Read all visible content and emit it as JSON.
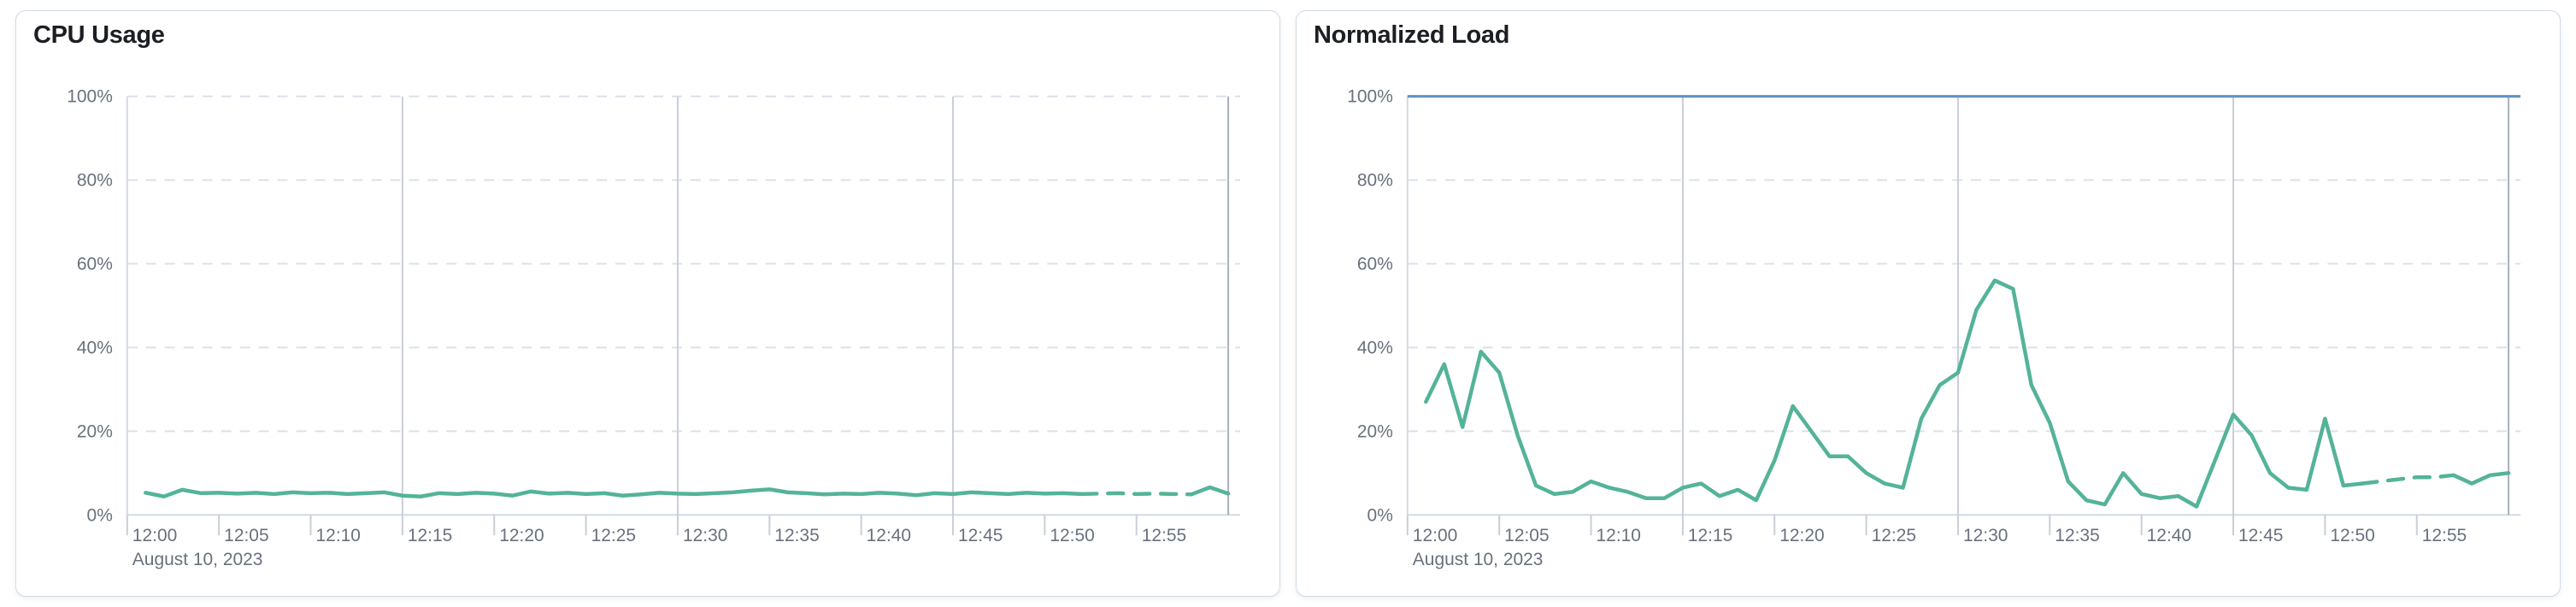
{
  "style": {
    "background": "#FFFFFF",
    "card_border": "#D3DAE6",
    "title_color": "#1C1E24",
    "axis_label_color": "#69707D",
    "h_gridline_color": "#DCE0EA",
    "v_gridline_color": "#C9CED8",
    "domain_end_line_color": "#A9AFBB",
    "axis_line_color": "#D3DAE6",
    "tick_color": "#C9CED8",
    "series_green": "#54B399",
    "limit_blue": "#6092C0"
  },
  "chart_data": [
    {
      "type": "line",
      "title": "CPU Usage",
      "date_label": "August 10, 2023",
      "x_domain": {
        "start": "12:00",
        "end": "13:00",
        "point_interval_minutes": 1,
        "first_point_minute": 1
      },
      "x_tick_labels": [
        "12:00",
        "12:05",
        "12:10",
        "12:15",
        "12:20",
        "12:25",
        "12:30",
        "12:35",
        "12:40",
        "12:45",
        "12:50",
        "12:55"
      ],
      "y_tick_labels": [
        "0%",
        "20%",
        "40%",
        "60%",
        "80%",
        "100%"
      ],
      "ylim": [
        0,
        100
      ],
      "grid": {
        "horizontal": "dashed",
        "vertical_major_every_minutes": 15,
        "legend": "none"
      },
      "limit_line": null,
      "dashed_segment": {
        "from_minute": 52,
        "to_minute": 58,
        "note": "most recent data drawn dashed"
      },
      "series": [
        {
          "name": "CPU Usage",
          "color": "#54B399",
          "unit": "%",
          "values": [
            5.3,
            4.4,
            6.0,
            5.2,
            5.3,
            5.1,
            5.3,
            5.0,
            5.4,
            5.2,
            5.3,
            5.0,
            5.2,
            5.4,
            4.6,
            4.4,
            5.2,
            5.0,
            5.3,
            5.1,
            4.6,
            5.6,
            5.1,
            5.3,
            5.0,
            5.2,
            4.6,
            4.9,
            5.3,
            5.1,
            5.0,
            5.2,
            5.4,
            5.8,
            6.1,
            5.4,
            5.2,
            4.9,
            5.1,
            5.0,
            5.3,
            5.1,
            4.7,
            5.2,
            5.0,
            5.4,
            5.2,
            5.0,
            5.3,
            5.1,
            5.2,
            5.0,
            5.1,
            5.2,
            5.0,
            5.1,
            5.0,
            4.9,
            6.6,
            5.1
          ]
        }
      ]
    },
    {
      "type": "line",
      "title": "Normalized Load",
      "date_label": "August 10, 2023",
      "x_domain": {
        "start": "12:00",
        "end": "13:00",
        "point_interval_minutes": 1,
        "first_point_minute": 1
      },
      "x_tick_labels": [
        "12:00",
        "12:05",
        "12:10",
        "12:15",
        "12:20",
        "12:25",
        "12:30",
        "12:35",
        "12:40",
        "12:45",
        "12:50",
        "12:55"
      ],
      "y_tick_labels": [
        "0%",
        "20%",
        "40%",
        "60%",
        "80%",
        "100%"
      ],
      "ylim": [
        0,
        100
      ],
      "grid": {
        "horizontal": "dashed",
        "vertical_major_every_minutes": 15,
        "legend": "none"
      },
      "limit_line": {
        "value": 100,
        "color": "#6092C0",
        "style": "solid"
      },
      "dashed_segment": {
        "from_minute": 52,
        "to_minute": 57,
        "note": "most recent data drawn dashed"
      },
      "series": [
        {
          "name": "Normalized Load",
          "color": "#54B399",
          "unit": "%",
          "values": [
            27,
            36,
            21,
            39,
            34,
            19,
            7,
            5,
            5.5,
            8,
            6.5,
            5.5,
            4,
            4,
            6.5,
            7.5,
            4.5,
            6,
            3.5,
            13,
            26,
            20,
            14,
            14,
            10,
            7.5,
            6.5,
            23,
            31,
            34,
            49,
            56,
            54,
            31,
            22,
            8,
            3.5,
            2.5,
            10,
            5,
            4,
            4.5,
            2,
            13,
            24,
            19,
            10,
            6.5,
            6,
            23,
            7,
            7.5,
            8,
            8.5,
            9,
            9,
            9.5,
            7.5,
            9.5,
            10
          ]
        }
      ]
    }
  ]
}
